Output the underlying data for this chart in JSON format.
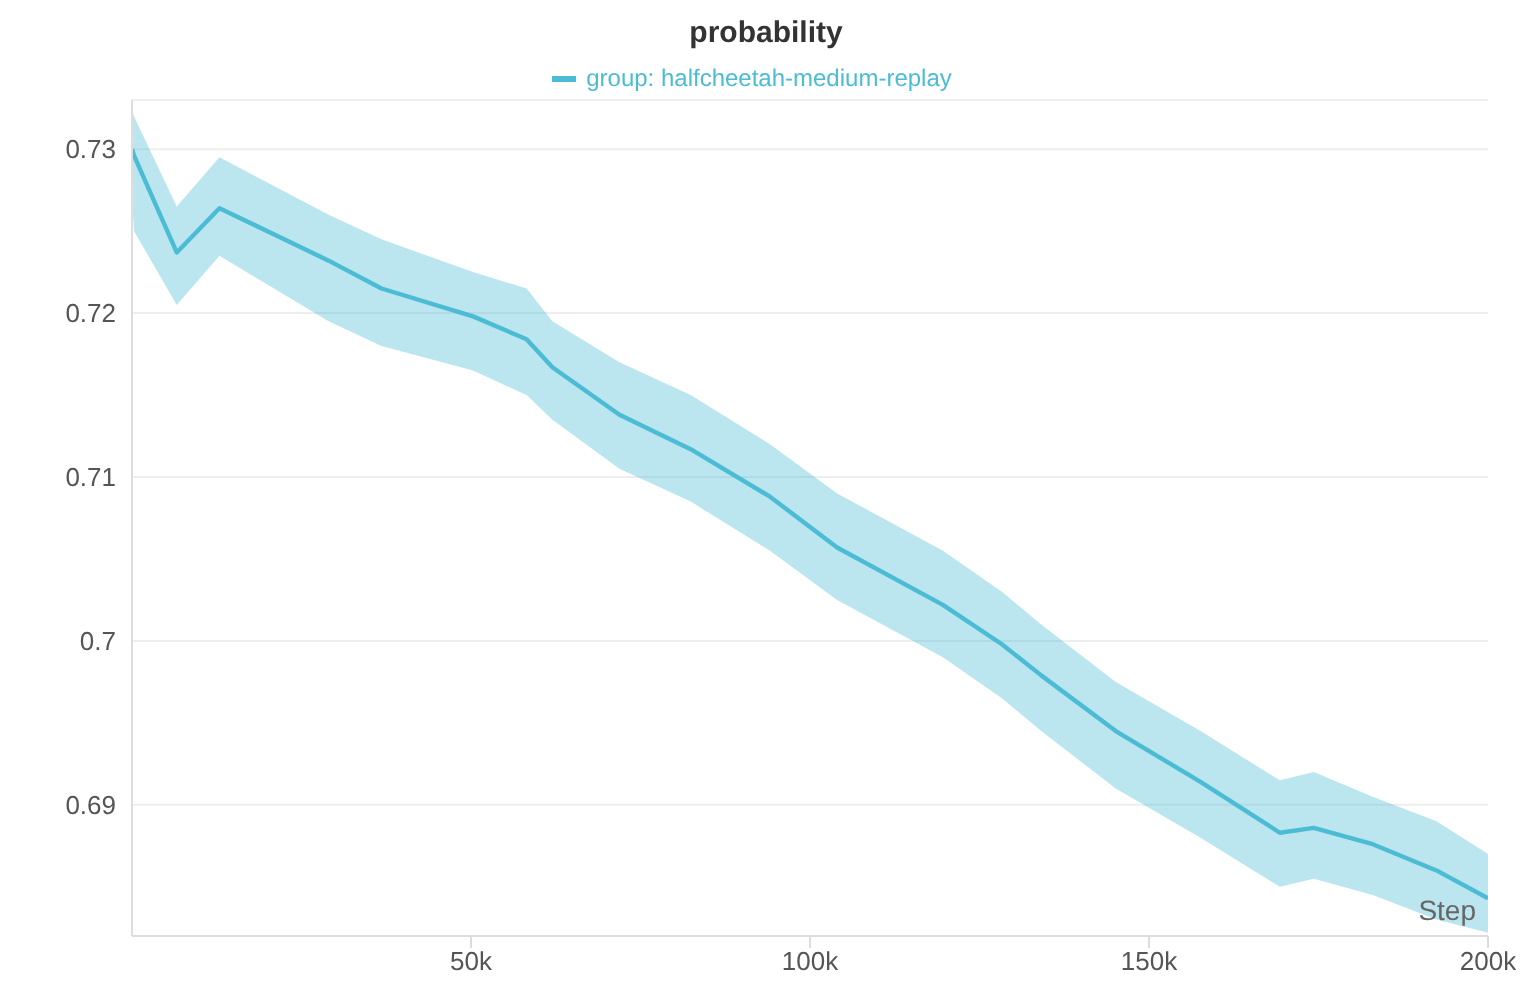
{
  "chart_data": {
    "type": "line",
    "title": "probability",
    "xlabel": "Step",
    "x": [
      0,
      300,
      6600,
      12900,
      29000,
      36800,
      50300,
      58200,
      62000,
      71900,
      82400,
      94100,
      104000,
      119600,
      128300,
      134100,
      145100,
      157600,
      169300,
      174300,
      183000,
      192400,
      200000
    ],
    "series": [
      {
        "name": "group: halfcheetah-medium-replay",
        "color": "#4bbcd4",
        "values": [
          0.73,
          0.7296,
          0.7237,
          0.7264,
          0.7232,
          0.7215,
          0.7198,
          0.7184,
          0.7167,
          0.7138,
          0.7117,
          0.7088,
          0.7057,
          0.7022,
          0.6998,
          0.6979,
          0.6945,
          0.6914,
          0.6883,
          0.6886,
          0.6876,
          0.686,
          0.6843
        ],
        "lower": [
          0.727,
          0.725,
          0.7205,
          0.7235,
          0.7195,
          0.718,
          0.7165,
          0.715,
          0.7135,
          0.7105,
          0.7085,
          0.7055,
          0.7025,
          0.699,
          0.6965,
          0.6945,
          0.691,
          0.688,
          0.685,
          0.6855,
          0.6845,
          0.683,
          0.6822
        ],
        "upper": [
          0.7325,
          0.732,
          0.7265,
          0.7295,
          0.726,
          0.7245,
          0.7225,
          0.7215,
          0.7195,
          0.717,
          0.715,
          0.712,
          0.709,
          0.7055,
          0.703,
          0.701,
          0.6975,
          0.6945,
          0.6915,
          0.692,
          0.6905,
          0.689,
          0.687
        ]
      }
    ],
    "xlim": [
      0,
      200000
    ],
    "xticks": [
      {
        "value": 50000,
        "label": "50k"
      },
      {
        "value": 100000,
        "label": "100k"
      },
      {
        "value": 150000,
        "label": "150k"
      },
      {
        "value": 200000,
        "label": "200k"
      }
    ],
    "ylim": [
      0.682,
      0.733
    ],
    "yticks": [
      0.69,
      0.7,
      0.71,
      0.72,
      0.73
    ],
    "grid": "y",
    "legend": "top",
    "marker": "none",
    "line_style": "solid"
  }
}
